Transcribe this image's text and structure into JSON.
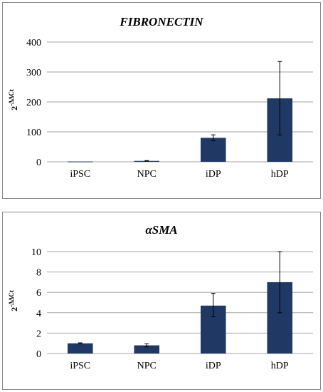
{
  "colors": {
    "bar": "#1f3864",
    "grid": "#a6a6a6",
    "axis": "#a6a6a6",
    "error": "#000000"
  },
  "chart_data": [
    {
      "type": "bar",
      "title": "FIBRONECTIN",
      "ylabel": {
        "base": "2",
        "exponent": "-ΔΔCt"
      },
      "categories": [
        "iPSC",
        "NPC",
        "iDP",
        "hDP"
      ],
      "values": [
        1,
        3,
        80,
        212
      ],
      "error_low": [
        0,
        1,
        10,
        122
      ],
      "error_high": [
        0,
        1,
        10,
        123
      ],
      "ylim": [
        0,
        400
      ],
      "yticks": [
        "0",
        "100",
        "200",
        "300",
        "400"
      ],
      "grid": true
    },
    {
      "type": "bar",
      "title": "αSMA",
      "ylabel": {
        "base": "2",
        "exponent": "-ΔΔCt"
      },
      "categories": [
        "iPSC",
        "NPC",
        "iDP",
        "hDP"
      ],
      "values": [
        1.0,
        0.8,
        4.7,
        7.0
      ],
      "error_low": [
        0.05,
        0.15,
        1.1,
        3.0
      ],
      "error_high": [
        0.05,
        0.15,
        1.2,
        3.0
      ],
      "ylim": [
        0,
        10
      ],
      "yticks": [
        "0",
        "2",
        "4",
        "6",
        "8",
        "10"
      ],
      "grid": true
    }
  ]
}
